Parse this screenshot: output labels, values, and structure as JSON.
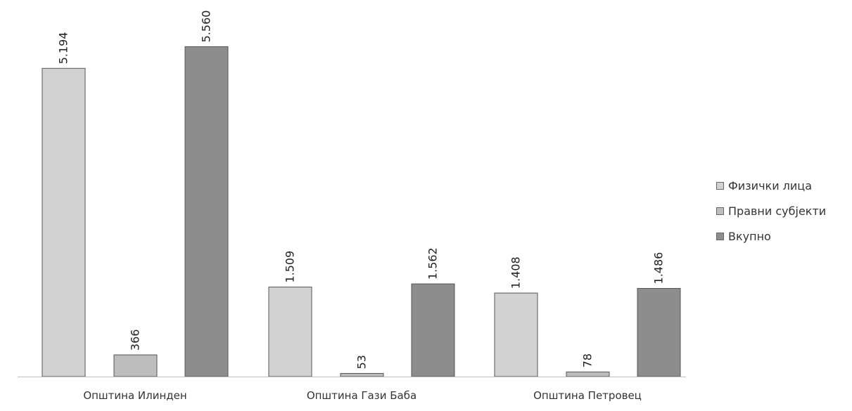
{
  "chart_data": {
    "type": "bar",
    "title": "",
    "xlabel": "",
    "ylabel": "",
    "ylim": [
      0,
      5600
    ],
    "grid": false,
    "legend_position": "right",
    "categories": [
      "Општина Илинден",
      "Општина Гази Баба",
      "Општина Петровец"
    ],
    "series": [
      {
        "name": "Физички лица",
        "color": "#d2d2d2",
        "values": [
          5194,
          1509,
          1408
        ],
        "labels": [
          "5.194",
          "1.509",
          "1.408"
        ]
      },
      {
        "name": "Правни субјекти",
        "color": "#bdbdbd",
        "values": [
          366,
          53,
          78
        ],
        "labels": [
          "366",
          "53",
          "78"
        ]
      },
      {
        "name": "Вкупно",
        "color": "#8d8d8d",
        "values": [
          5560,
          1562,
          1486
        ],
        "labels": [
          "5.560",
          "1.562",
          "1.486"
        ]
      }
    ]
  }
}
